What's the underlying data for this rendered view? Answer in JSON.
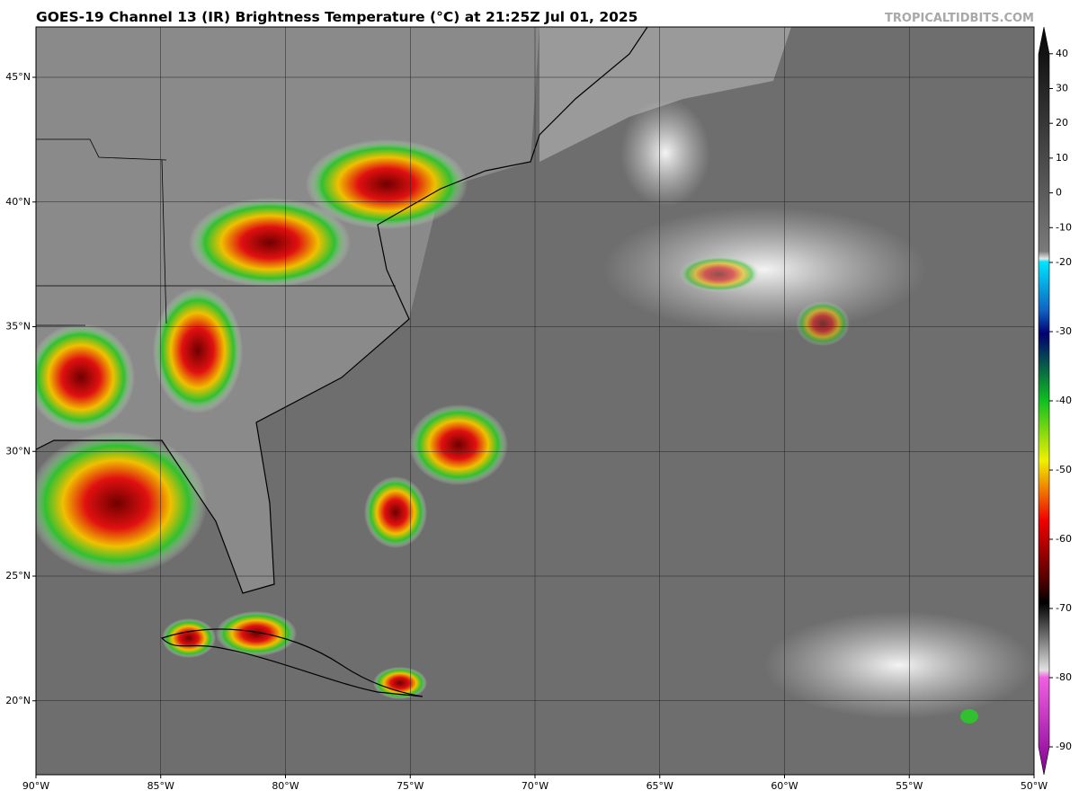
{
  "header": {
    "title": "GOES-19 Channel 13 (IR) Brightness Temperature (°C) at 21:25Z Jul 01, 2025",
    "source": "TROPICALTIDBITS.COM"
  },
  "map": {
    "lat_ticks": [
      {
        "value": 45,
        "label": "45°N"
      },
      {
        "value": 40,
        "label": "40°N"
      },
      {
        "value": 35,
        "label": "35°N"
      },
      {
        "value": 30,
        "label": "30°N"
      },
      {
        "value": 25,
        "label": "25°N"
      },
      {
        "value": 20,
        "label": "20°N"
      }
    ],
    "lon_ticks": [
      {
        "value": -90,
        "label": "90°W"
      },
      {
        "value": -85,
        "label": "85°W"
      },
      {
        "value": -80,
        "label": "80°W"
      },
      {
        "value": -75,
        "label": "75°W"
      },
      {
        "value": -70,
        "label": "70°W"
      },
      {
        "value": -65,
        "label": "65°W"
      },
      {
        "value": -60,
        "label": "60°W"
      },
      {
        "value": -55,
        "label": "55°W"
      },
      {
        "value": -50,
        "label": "50°W"
      }
    ]
  },
  "colorbar": {
    "ticks": [
      40,
      30,
      20,
      10,
      0,
      -10,
      -20,
      -30,
      -40,
      -50,
      -60,
      -70,
      -80,
      -90
    ]
  }
}
